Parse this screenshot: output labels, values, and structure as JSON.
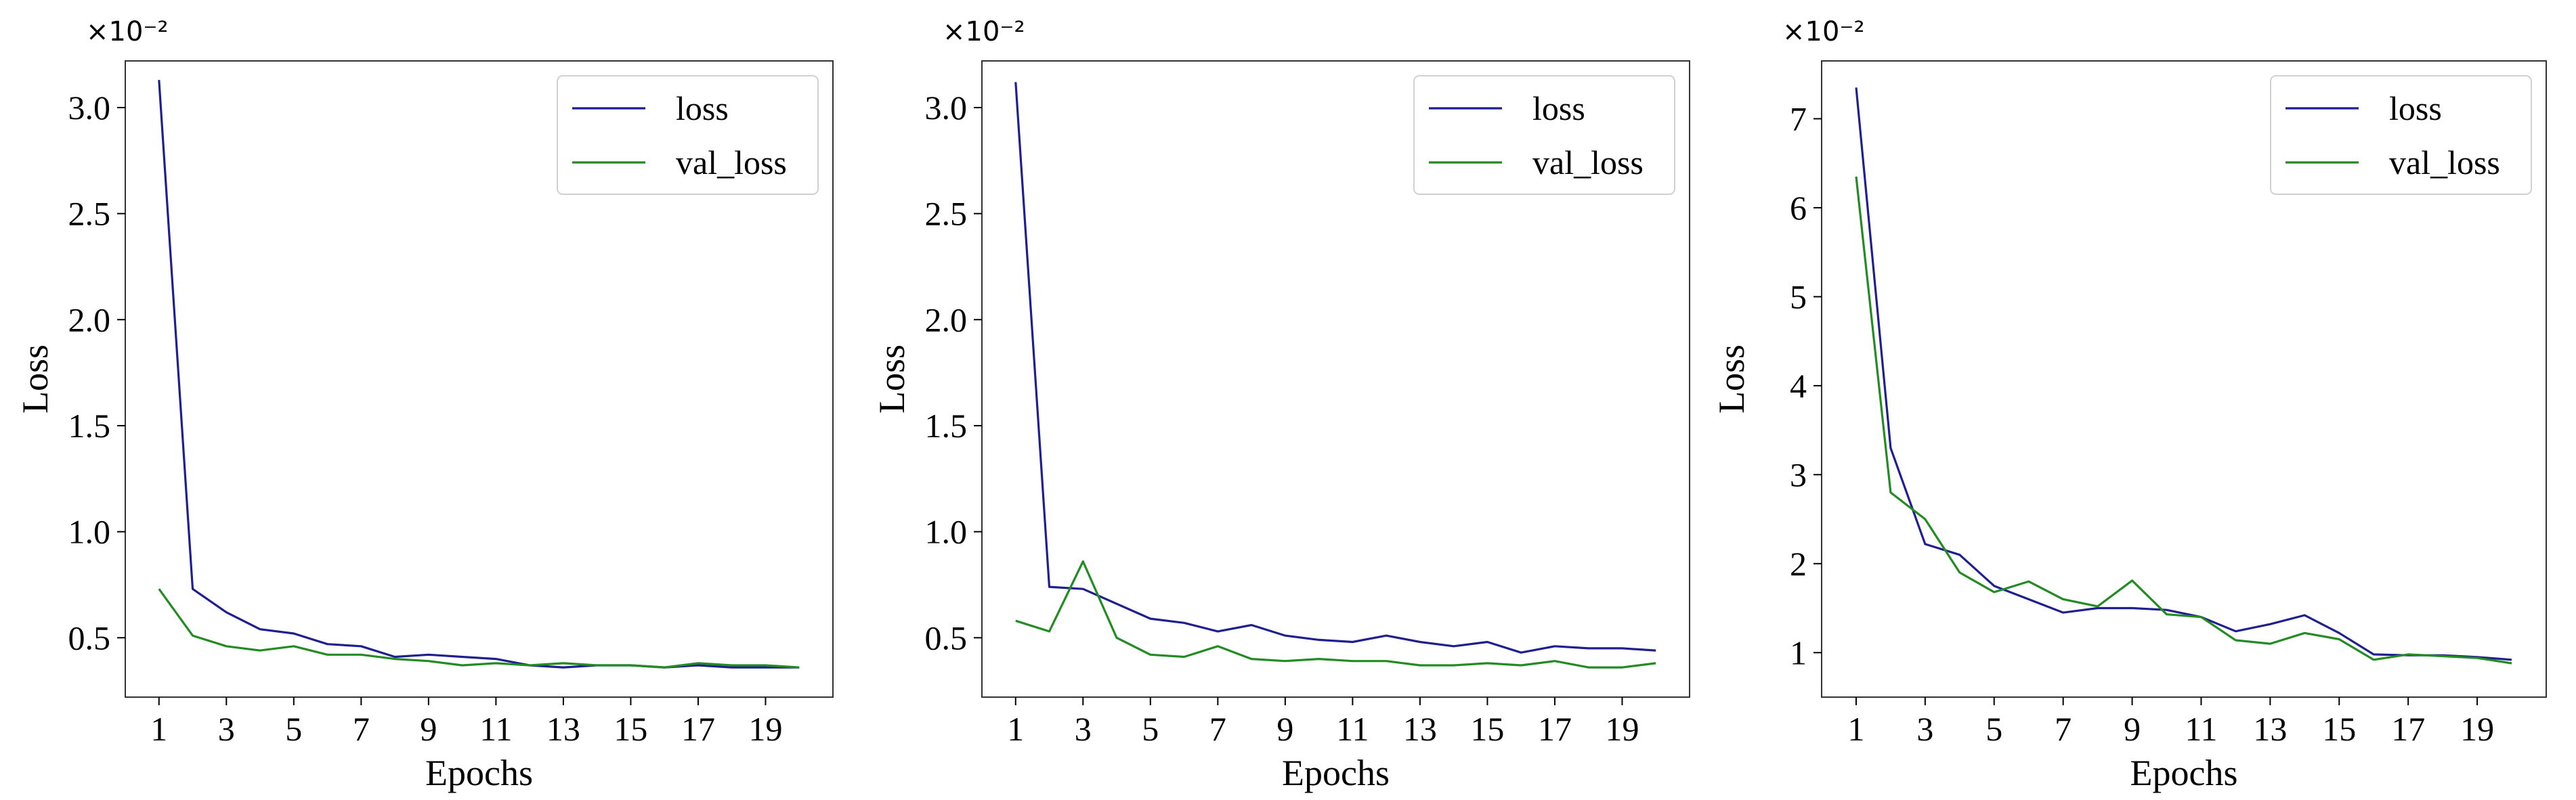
{
  "colors": {
    "loss": "#1f1f8f",
    "val_loss": "#228b22",
    "frame": "#333333",
    "legend_border": "#d0d0d0"
  },
  "chart_data": [
    {
      "type": "line",
      "xlabel": "Epochs",
      "ylabel": "Loss",
      "y_offset_label": "×10⁻²",
      "grid": false,
      "legend_position": "top-right",
      "xlim": [
        0,
        21
      ],
      "ylim": [
        0.22,
        3.22
      ],
      "xticks": [
        1,
        3,
        5,
        7,
        9,
        11,
        13,
        15,
        17,
        19
      ],
      "xtick_labels": [
        "1",
        "3",
        "5",
        "7",
        "9",
        "11",
        "13",
        "15",
        "17",
        "19"
      ],
      "yticks": [
        0.5,
        1.0,
        1.5,
        2.0,
        2.5,
        3.0
      ],
      "ytick_labels": [
        "0.5",
        "1.0",
        "1.5",
        "2.0",
        "2.5",
        "3.0"
      ],
      "x": [
        1,
        2,
        3,
        4,
        5,
        6,
        7,
        8,
        9,
        10,
        11,
        12,
        13,
        14,
        15,
        16,
        17,
        18,
        19,
        20
      ],
      "series": [
        {
          "name": "loss",
          "color": "#1f1f8f",
          "values": [
            3.13,
            0.73,
            0.62,
            0.54,
            0.52,
            0.47,
            0.46,
            0.41,
            0.42,
            0.41,
            0.4,
            0.37,
            0.36,
            0.37,
            0.37,
            0.36,
            0.37,
            0.36,
            0.36,
            0.36
          ]
        },
        {
          "name": "val_loss",
          "color": "#228b22",
          "values": [
            0.73,
            0.51,
            0.46,
            0.44,
            0.46,
            0.42,
            0.42,
            0.4,
            0.39,
            0.37,
            0.38,
            0.37,
            0.38,
            0.37,
            0.37,
            0.36,
            0.38,
            0.37,
            0.37,
            0.36
          ]
        }
      ]
    },
    {
      "type": "line",
      "xlabel": "Epochs",
      "ylabel": "Loss",
      "y_offset_label": "×10⁻²",
      "grid": false,
      "legend_position": "top-right",
      "xlim": [
        0,
        21
      ],
      "ylim": [
        0.22,
        3.22
      ],
      "xticks": [
        1,
        3,
        5,
        7,
        9,
        11,
        13,
        15,
        17,
        19
      ],
      "xtick_labels": [
        "1",
        "3",
        "5",
        "7",
        "9",
        "11",
        "13",
        "15",
        "17",
        "19"
      ],
      "yticks": [
        0.5,
        1.0,
        1.5,
        2.0,
        2.5,
        3.0
      ],
      "ytick_labels": [
        "0.5",
        "1.0",
        "1.5",
        "2.0",
        "2.5",
        "3.0"
      ],
      "x": [
        1,
        2,
        3,
        4,
        5,
        6,
        7,
        8,
        9,
        10,
        11,
        12,
        13,
        14,
        15,
        16,
        17,
        18,
        19,
        20
      ],
      "series": [
        {
          "name": "loss",
          "color": "#1f1f8f",
          "values": [
            3.12,
            0.74,
            0.73,
            0.66,
            0.59,
            0.57,
            0.53,
            0.56,
            0.51,
            0.49,
            0.48,
            0.51,
            0.48,
            0.46,
            0.48,
            0.43,
            0.46,
            0.45,
            0.45,
            0.44
          ]
        },
        {
          "name": "val_loss",
          "color": "#228b22",
          "values": [
            0.58,
            0.53,
            0.86,
            0.5,
            0.42,
            0.41,
            0.46,
            0.4,
            0.39,
            0.4,
            0.39,
            0.39,
            0.37,
            0.37,
            0.38,
            0.37,
            0.39,
            0.36,
            0.36,
            0.38
          ]
        }
      ]
    },
    {
      "type": "line",
      "xlabel": "Epochs",
      "ylabel": "Loss",
      "y_offset_label": "×10⁻²",
      "grid": false,
      "legend_position": "top-right",
      "xlim": [
        0,
        21
      ],
      "ylim": [
        0.5,
        7.65
      ],
      "xticks": [
        1,
        3,
        5,
        7,
        9,
        11,
        13,
        15,
        17,
        19
      ],
      "xtick_labels": [
        "1",
        "3",
        "5",
        "7",
        "9",
        "11",
        "13",
        "15",
        "17",
        "19"
      ],
      "yticks": [
        1,
        2,
        3,
        4,
        5,
        6,
        7
      ],
      "ytick_labels": [
        "1",
        "2",
        "3",
        "4",
        "5",
        "6",
        "7"
      ],
      "x": [
        1,
        2,
        3,
        4,
        5,
        6,
        7,
        8,
        9,
        10,
        11,
        12,
        13,
        14,
        15,
        16,
        17,
        18,
        19,
        20
      ],
      "series": [
        {
          "name": "loss",
          "color": "#1f1f8f",
          "values": [
            7.35,
            3.3,
            2.22,
            2.1,
            1.75,
            1.6,
            1.45,
            1.5,
            1.5,
            1.48,
            1.4,
            1.24,
            1.32,
            1.42,
            1.22,
            0.98,
            0.97,
            0.97,
            0.95,
            0.92
          ]
        },
        {
          "name": "val_loss",
          "color": "#228b22",
          "values": [
            6.35,
            2.8,
            2.5,
            1.9,
            1.68,
            1.8,
            1.6,
            1.52,
            1.81,
            1.43,
            1.4,
            1.14,
            1.1,
            1.22,
            1.15,
            0.92,
            0.98,
            0.96,
            0.94,
            0.88
          ]
        }
      ]
    }
  ]
}
